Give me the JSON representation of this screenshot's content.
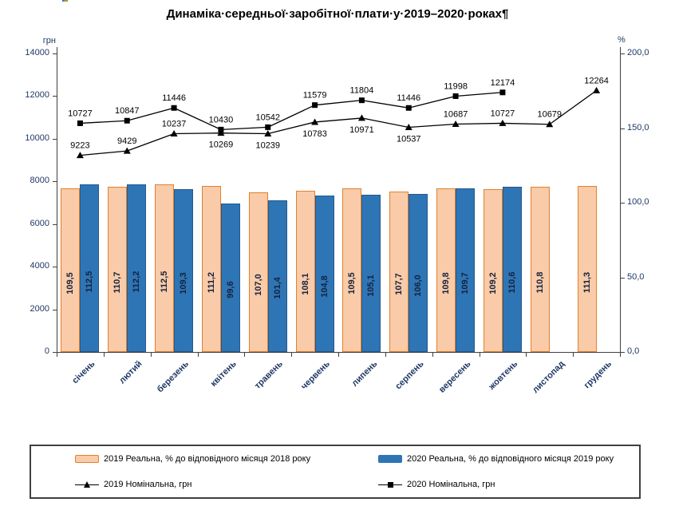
{
  "title": {
    "text": "Динаміка·середньої·заробітної·плати·у·2019–2020·роках¶"
  },
  "chart_data": {
    "type": "combo-bar-line",
    "categories": [
      "січень",
      "лютий",
      "березень",
      "квітень",
      "травень",
      "червень",
      "липень",
      "серпень",
      "вересень",
      "жовтень",
      "листопад",
      "грудень"
    ],
    "left_axis": {
      "unit": "грн",
      "min": 0,
      "max": 14000,
      "step": 2000,
      "tick_labels": [
        "0",
        "2000",
        "4000",
        "6000",
        "8000",
        "10000",
        "12000",
        "14000"
      ]
    },
    "right_axis": {
      "unit": "%",
      "min": 0,
      "max": 200,
      "step": 50,
      "tick_labels": [
        "0,0",
        "50,0",
        "100,0",
        "150,0",
        "200,0"
      ]
    },
    "grid": "off",
    "bar_series": [
      {
        "name": "2019 Реальна, % до відповідного місяця 2018 року",
        "axis": "right",
        "fill": "#F9CBA8",
        "border": "#E0812F",
        "values": [
          109.5,
          110.7,
          112.5,
          111.2,
          107.0,
          108.1,
          109.5,
          107.7,
          109.8,
          109.2,
          110.8,
          111.3
        ],
        "labels": [
          "109,5",
          "110,7",
          "112,5",
          "111,2",
          "107,0",
          "108,1",
          "109,5",
          "107,7",
          "109,8",
          "109,2",
          "110,8",
          "111,3"
        ]
      },
      {
        "name": "2020 Реальна, % до відповідного місяця 2019 року",
        "axis": "right",
        "fill": "#2E75B6",
        "border": "#24598C",
        "values": [
          112.5,
          112.2,
          109.3,
          99.6,
          101.4,
          104.8,
          105.1,
          106.0,
          109.7,
          110.6
        ],
        "labels": [
          "112,5",
          "112,2",
          "109,3",
          "99,6",
          "101,4",
          "104,8",
          "105,1",
          "106,0",
          "109,7",
          "110,6"
        ]
      }
    ],
    "line_series": [
      {
        "name": "2019 Номінальна, грн",
        "axis": "left",
        "marker": "triangle",
        "color": "#000000",
        "values": [
          9223,
          9429,
          10237,
          10269,
          10239,
          10783,
          10971,
          10537,
          10687,
          10727,
          10679,
          12264
        ],
        "label_position": [
          "above",
          "above",
          "above",
          "below",
          "below",
          "below",
          "below",
          "below",
          "above",
          "above",
          "above",
          "above"
        ]
      },
      {
        "name": "2020 Номінальна, грн",
        "axis": "left",
        "marker": "square",
        "color": "#000000",
        "values": [
          10727,
          10847,
          11446,
          10430,
          10542,
          11579,
          11804,
          11446,
          11998,
          12174
        ],
        "label_position": [
          "above",
          "above",
          "above",
          "above",
          "above",
          "above",
          "above",
          "above",
          "above",
          "above"
        ]
      }
    ],
    "legend": {
      "position": "bottom-box",
      "items": [
        {
          "type": "bar",
          "swatch": "orange",
          "label": "2019 Реальна, % до відповідного місяця 2018 року"
        },
        {
          "type": "bar",
          "swatch": "blue",
          "label": "2020 Реальна, % до відповідного місяця 2019 року"
        },
        {
          "type": "line",
          "marker": "triangle",
          "label": "2019 Номінальна, грн"
        },
        {
          "type": "line",
          "marker": "square",
          "label": "2020 Номінальна, грн"
        }
      ]
    }
  }
}
